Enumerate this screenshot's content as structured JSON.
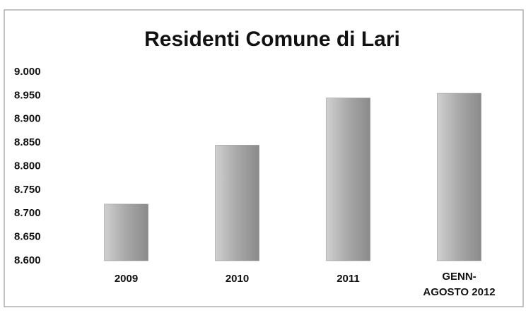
{
  "chart_data": {
    "type": "bar",
    "title": "Residenti Comune di Lari",
    "categories": [
      "2009",
      "2010",
      "2011",
      "GENN-AGOSTO 2012"
    ],
    "values": [
      8720,
      8845,
      8945,
      8955
    ],
    "color": "#a8a8a8",
    "ylim": [
      8600,
      9000
    ],
    "yticks": [
      {
        "value": 8600,
        "label": "8.600"
      },
      {
        "value": 8650,
        "label": "8.650"
      },
      {
        "value": 8700,
        "label": "8.700"
      },
      {
        "value": 8750,
        "label": "8.750"
      },
      {
        "value": 8800,
        "label": "8.800"
      },
      {
        "value": 8850,
        "label": "8.850"
      },
      {
        "value": 8900,
        "label": "8.900"
      },
      {
        "value": 8950,
        "label": "8.950"
      },
      {
        "value": 9000,
        "label": "9.000"
      }
    ],
    "grid": false
  }
}
